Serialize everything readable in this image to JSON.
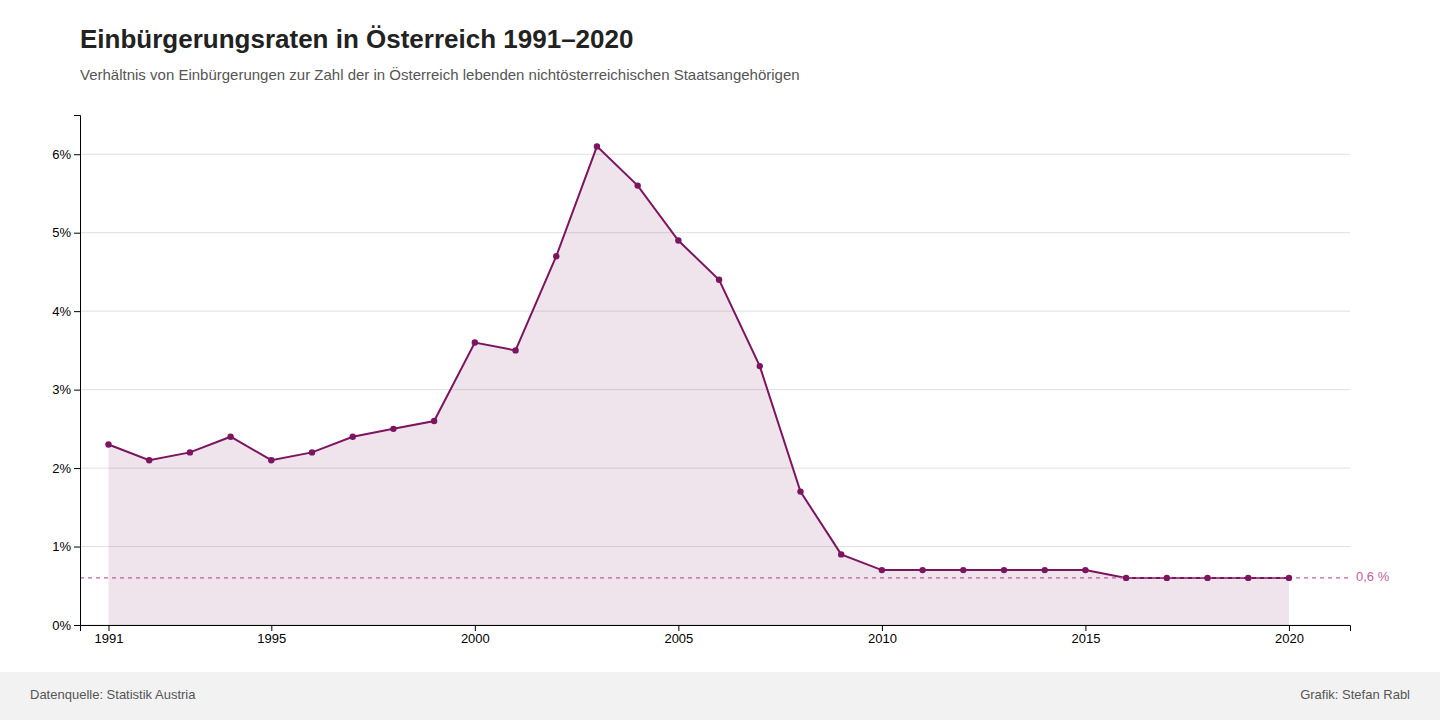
{
  "chart_data": {
    "type": "area",
    "title": "Einbürgerungsraten in Österreich 1991–2020",
    "subtitle": "Verhältnis von Einbürgerungen zur Zahl der in Österreich lebenden nichtösterreichischen Staatsangehörigen",
    "source": "Datenquelle: Statistik Austria",
    "credit": "Grafik: Stefan Rabl",
    "color": "#7B1560",
    "marker": "circle",
    "grid": true,
    "x": [
      1991,
      1992,
      1993,
      1994,
      1995,
      1996,
      1997,
      1998,
      1999,
      2000,
      2001,
      2002,
      2003,
      2004,
      2005,
      2006,
      2007,
      2008,
      2009,
      2010,
      2011,
      2012,
      2013,
      2014,
      2015,
      2016,
      2017,
      2018,
      2019,
      2020
    ],
    "values": [
      0.023,
      0.021,
      0.022,
      0.024,
      0.021,
      0.022,
      0.024,
      0.025,
      0.026,
      0.036,
      0.035,
      0.047,
      0.061,
      0.056,
      0.049,
      0.044,
      0.033,
      0.017,
      0.009,
      0.007,
      0.007,
      0.007,
      0.007,
      0.007,
      0.007,
      0.006,
      0.006,
      0.006,
      0.006,
      0.006
    ],
    "xlim": [
      1990.3,
      2021.5
    ],
    "xticks": [
      1991,
      1995,
      2000,
      2005,
      2010,
      2015,
      2020
    ],
    "ylim": [
      0,
      0.065
    ],
    "yticks": [
      {
        "value": 0,
        "label": "0%"
      },
      {
        "value": 0.01,
        "label": "1%"
      },
      {
        "value": 0.02,
        "label": "2%"
      },
      {
        "value": 0.03,
        "label": "3%"
      },
      {
        "value": 0.04,
        "label": "4%"
      },
      {
        "value": 0.05,
        "label": "5%"
      },
      {
        "value": 0.06,
        "label": "6%"
      }
    ],
    "annotations": [
      {
        "y": 0.006,
        "text": "0,6 %",
        "line_style": "dashed",
        "color": "#C060A0"
      }
    ]
  }
}
